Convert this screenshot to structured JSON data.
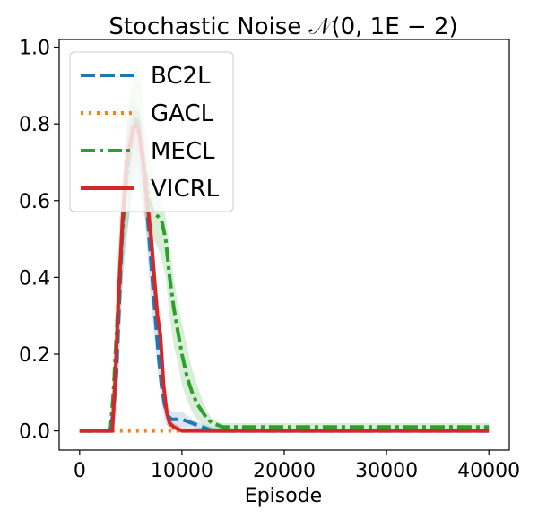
{
  "chart_data": {
    "type": "line",
    "title": "Stochastic Noise 𝒩(0, 1E − 2)",
    "xlabel": "Episode",
    "ylabel": "",
    "xlim": [
      -2000,
      42000
    ],
    "ylim": [
      -0.05,
      1.02
    ],
    "xticks": [
      0,
      10000,
      20000,
      30000,
      40000
    ],
    "xtick_labels": [
      "0",
      "10000",
      "20000",
      "30000",
      "40000"
    ],
    "yticks": [
      0.0,
      0.2,
      0.4,
      0.6,
      0.8,
      1.0
    ],
    "ytick_labels": [
      "0.0",
      "0.2",
      "0.4",
      "0.6",
      "0.8",
      "1.0"
    ],
    "grid": false,
    "legend_position": "upper-left",
    "series": [
      {
        "name": "BC2L",
        "color": "#1f77b4",
        "style": "dashed",
        "x": [
          0,
          3000,
          3300,
          3600,
          3900,
          4200,
          4500,
          4800,
          5200,
          5600,
          6000,
          6400,
          6800,
          7100,
          7400,
          7700,
          8000,
          8300,
          8600,
          9000,
          10000,
          11000,
          12000,
          13000,
          20000,
          30000,
          40000
        ],
        "y": [
          0.0,
          0.0,
          0.05,
          0.15,
          0.35,
          0.55,
          0.65,
          0.72,
          0.78,
          0.8,
          0.75,
          0.65,
          0.5,
          0.4,
          0.3,
          0.2,
          0.12,
          0.07,
          0.04,
          0.03,
          0.03,
          0.02,
          0.01,
          0.0,
          0.0,
          0.0,
          0.0
        ],
        "band_upper": [
          0.0,
          0.0,
          0.1,
          0.25,
          0.45,
          0.65,
          0.78,
          0.85,
          0.86,
          0.85,
          0.82,
          0.72,
          0.6,
          0.5,
          0.38,
          0.26,
          0.17,
          0.11,
          0.07,
          0.05,
          0.05,
          0.03,
          0.02,
          0.01,
          0.0,
          0.0,
          0.0
        ],
        "band_lower": [
          0.0,
          0.0,
          0.0,
          0.05,
          0.2,
          0.4,
          0.5,
          0.55,
          0.62,
          0.65,
          0.6,
          0.55,
          0.4,
          0.3,
          0.22,
          0.14,
          0.07,
          0.03,
          0.01,
          0.01,
          0.01,
          0.01,
          0.0,
          0.0,
          0.0,
          0.0,
          0.0
        ]
      },
      {
        "name": "GACL",
        "color": "#ff7f0e",
        "style": "dotted",
        "x": [
          0,
          40000
        ],
        "y": [
          0.0,
          0.0
        ]
      },
      {
        "name": "MECL",
        "color": "#2ca02c",
        "style": "dashdot",
        "x": [
          0,
          3000,
          3300,
          3600,
          4000,
          4400,
          4800,
          5200,
          5600,
          6000,
          6400,
          6800,
          7200,
          7600,
          8000,
          8400,
          8800,
          9200,
          9600,
          10000,
          10500,
          11000,
          11500,
          12000,
          12500,
          13000,
          14000,
          16000,
          20000,
          25000,
          30000,
          35000,
          40000
        ],
        "y": [
          0.0,
          0.0,
          0.1,
          0.25,
          0.45,
          0.6,
          0.7,
          0.8,
          0.82,
          0.75,
          0.68,
          0.6,
          0.57,
          0.56,
          0.55,
          0.5,
          0.4,
          0.32,
          0.26,
          0.2,
          0.14,
          0.1,
          0.07,
          0.05,
          0.03,
          0.02,
          0.01,
          0.01,
          0.01,
          0.01,
          0.01,
          0.01,
          0.01
        ],
        "band_upper": [
          0.0,
          0.0,
          0.2,
          0.4,
          0.6,
          0.75,
          0.85,
          0.93,
          0.95,
          0.9,
          0.8,
          0.72,
          0.65,
          0.62,
          0.6,
          0.56,
          0.48,
          0.4,
          0.33,
          0.28,
          0.22,
          0.16,
          0.12,
          0.08,
          0.05,
          0.03,
          0.02,
          0.02,
          0.02,
          0.02,
          0.02,
          0.02,
          0.02
        ],
        "band_lower": [
          0.0,
          0.0,
          0.0,
          0.1,
          0.3,
          0.45,
          0.55,
          0.65,
          0.7,
          0.62,
          0.56,
          0.5,
          0.5,
          0.48,
          0.45,
          0.4,
          0.3,
          0.22,
          0.18,
          0.12,
          0.08,
          0.05,
          0.03,
          0.02,
          0.01,
          0.0,
          0.0,
          0.0,
          0.0,
          0.0,
          0.0,
          0.0,
          0.0
        ]
      },
      {
        "name": "VICRL",
        "color": "#d62728",
        "style": "solid",
        "x": [
          0,
          3200,
          3500,
          3800,
          4200,
          4600,
          5000,
          5400,
          5800,
          6200,
          6600,
          7000,
          7300,
          7600,
          7900,
          8200,
          8500,
          8800,
          9200,
          10000,
          20000,
          30000,
          40000
        ],
        "y": [
          0.0,
          0.0,
          0.15,
          0.35,
          0.55,
          0.7,
          0.76,
          0.8,
          0.78,
          0.7,
          0.6,
          0.5,
          0.4,
          0.3,
          0.25,
          0.12,
          0.05,
          0.02,
          0.01,
          0.0,
          0.0,
          0.0,
          0.0
        ],
        "band_upper": [
          0.0,
          0.0,
          0.25,
          0.45,
          0.65,
          0.76,
          0.82,
          0.84,
          0.83,
          0.78,
          0.68,
          0.58,
          0.47,
          0.36,
          0.3,
          0.16,
          0.08,
          0.04,
          0.02,
          0.01,
          0.0,
          0.0,
          0.0
        ],
        "band_lower": [
          0.0,
          0.0,
          0.05,
          0.25,
          0.45,
          0.62,
          0.7,
          0.74,
          0.72,
          0.62,
          0.52,
          0.42,
          0.33,
          0.24,
          0.2,
          0.08,
          0.02,
          0.0,
          0.0,
          0.0,
          0.0,
          0.0,
          0.0
        ]
      }
    ]
  }
}
